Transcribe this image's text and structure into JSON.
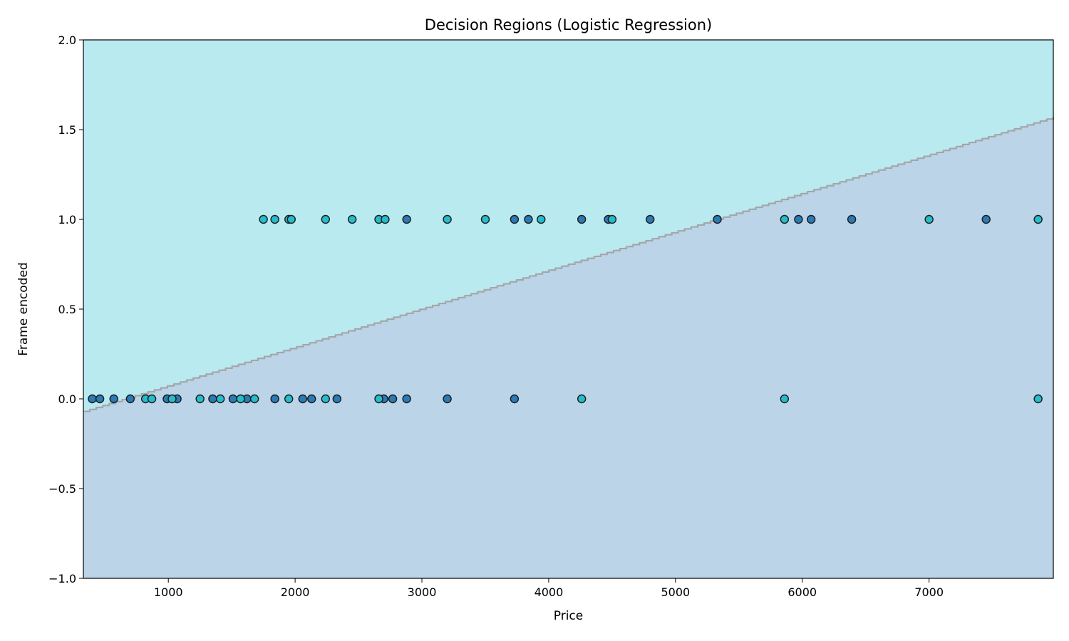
{
  "chart_data": {
    "type": "scatter",
    "title": "Decision Regions (Logistic Regression)",
    "xlabel": "Price",
    "ylabel": "Frame encoded",
    "xlim": [
      330,
      7980
    ],
    "ylim": [
      -1.0,
      2.0
    ],
    "xticks": [
      1000,
      2000,
      3000,
      4000,
      5000,
      6000,
      7000
    ],
    "yticks": [
      -1.0,
      -0.5,
      0.0,
      0.5,
      1.0,
      1.5,
      2.0
    ],
    "ytick_labels": [
      "−1.0",
      "−0.5",
      "0.0",
      "0.5",
      "1.0",
      "1.5",
      "2.0"
    ],
    "grid": false,
    "legend": "none",
    "decision_boundary": {
      "x": [
        330,
        7980
      ],
      "y": [
        -0.07,
        1.57
      ]
    },
    "colors": {
      "region_upper": "#b9eaef",
      "region_lower": "#bbd4e7",
      "boundary": "#a0a0a0",
      "class_dark": "#2a7ab5",
      "class_light": "#25bccc",
      "marker_edge": "#1a1a1a"
    },
    "series": [
      {
        "class": "dark",
        "points": [
          [
            400,
            0
          ],
          [
            460,
            0
          ],
          [
            570,
            0
          ],
          [
            700,
            0
          ],
          [
            990,
            0
          ],
          [
            1070,
            0
          ],
          [
            1350,
            0
          ],
          [
            1510,
            0
          ],
          [
            1620,
            0
          ],
          [
            1840,
            0
          ],
          [
            2060,
            0
          ],
          [
            2130,
            0
          ],
          [
            2330,
            0
          ],
          [
            2700,
            0
          ],
          [
            2770,
            0
          ],
          [
            2880,
            0
          ],
          [
            3200,
            0
          ],
          [
            3730,
            0
          ],
          [
            2880,
            1
          ],
          [
            3730,
            1
          ],
          [
            3840,
            1
          ],
          [
            4260,
            1
          ],
          [
            4470,
            1
          ],
          [
            4800,
            1
          ],
          [
            5330,
            1
          ],
          [
            5970,
            1
          ],
          [
            6070,
            1
          ],
          [
            6390,
            1
          ],
          [
            7450,
            1
          ]
        ]
      },
      {
        "class": "light",
        "points": [
          [
            820,
            0
          ],
          [
            870,
            0
          ],
          [
            1030,
            0
          ],
          [
            1250,
            0
          ],
          [
            1410,
            0
          ],
          [
            1570,
            0
          ],
          [
            1680,
            0
          ],
          [
            1950,
            0
          ],
          [
            2240,
            0
          ],
          [
            2660,
            0
          ],
          [
            4260,
            0
          ],
          [
            5860,
            0
          ],
          [
            7860,
            0
          ],
          [
            1750,
            1
          ],
          [
            1840,
            1
          ],
          [
            1950,
            1
          ],
          [
            1970,
            1
          ],
          [
            2240,
            1
          ],
          [
            2450,
            1
          ],
          [
            2660,
            1
          ],
          [
            2710,
            1
          ],
          [
            3200,
            1
          ],
          [
            3500,
            1
          ],
          [
            3940,
            1
          ],
          [
            4500,
            1
          ],
          [
            5860,
            1
          ],
          [
            7000,
            1
          ],
          [
            7860,
            1
          ]
        ]
      }
    ]
  }
}
